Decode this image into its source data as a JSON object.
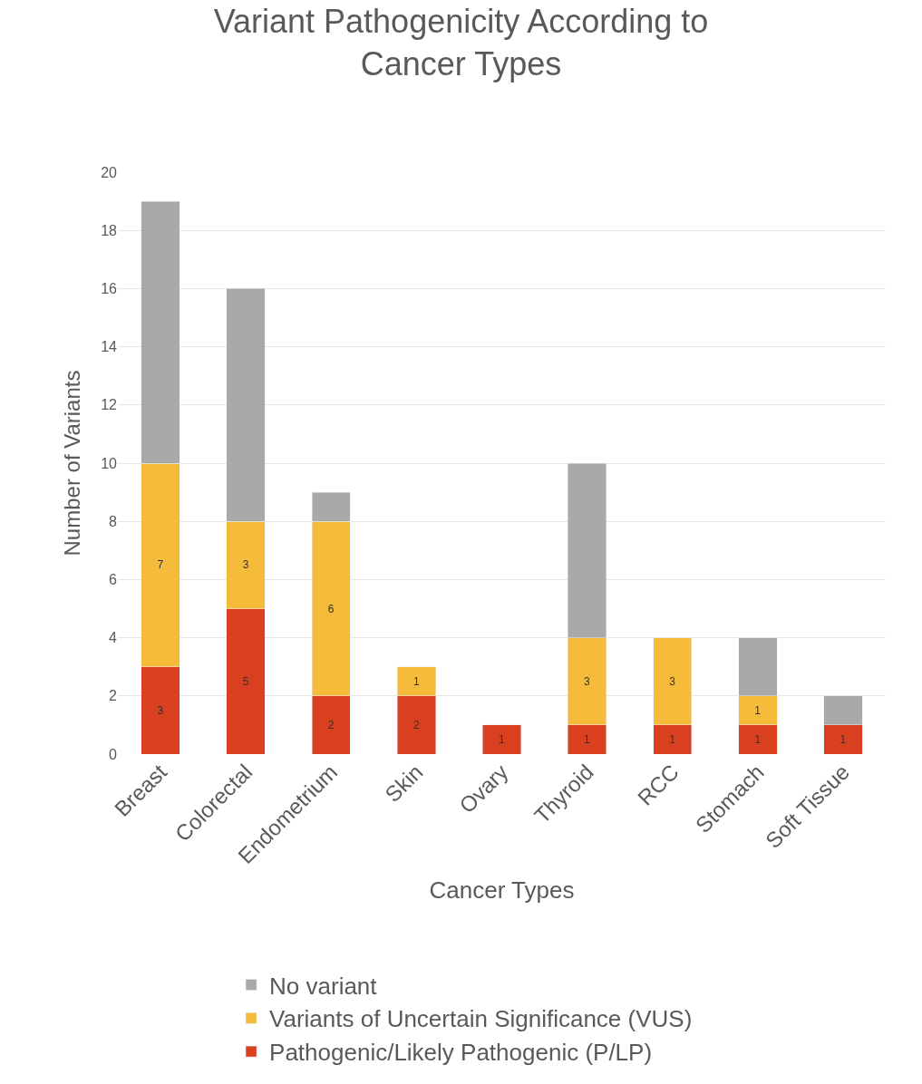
{
  "chart_data": {
    "type": "bar",
    "title": "Variant Pathogenicity According to\nCancer Types",
    "xlabel": "Cancer Types",
    "ylabel": "Number of Variants",
    "categories": [
      "Breast",
      "Colorectal",
      "Endometrium",
      "Skin",
      "Ovary",
      "Thyroid",
      "RCC",
      "Stomach",
      "Soft Tissue"
    ],
    "stacked": true,
    "series": [
      {
        "name": "Pathogenic/Likely Pathogenic (P/LP)",
        "color": "#d8401f",
        "values": [
          3,
          5,
          2,
          2,
          1,
          1,
          1,
          1,
          1
        ],
        "value_labels": [
          "3",
          "5",
          "2",
          "2",
          "1",
          "1",
          "1",
          "1",
          "1"
        ]
      },
      {
        "name": "Variants of Uncertain Significance (VUS)",
        "color": "#f5bc3c",
        "values": [
          7,
          3,
          6,
          1,
          null,
          3,
          3,
          1,
          null
        ],
        "value_labels": [
          "7",
          "3",
          "6",
          "1",
          null,
          "3",
          "3",
          "1",
          null
        ]
      },
      {
        "name": "No variant",
        "color": "#a9a9a9",
        "values": [
          9,
          8,
          1,
          null,
          null,
          6,
          null,
          2,
          1
        ]
      }
    ],
    "ylim": [
      0,
      20
    ],
    "yticks": [
      0,
      2,
      4,
      6,
      8,
      10,
      12,
      14,
      16,
      18,
      20
    ],
    "grid": "y",
    "legend": "bottom"
  }
}
